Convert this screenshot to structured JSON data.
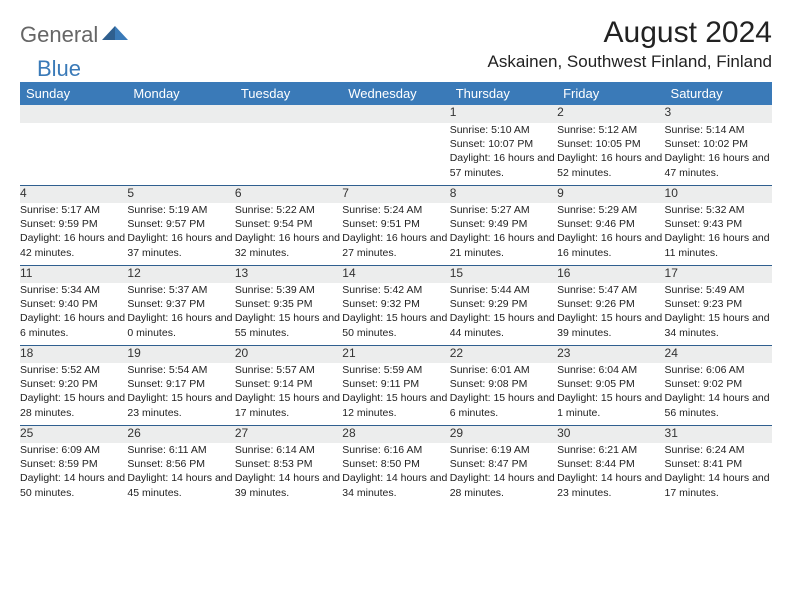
{
  "logo": {
    "part1": "General",
    "part2": "Blue"
  },
  "title": "August 2024",
  "subtitle": "Askainen, Southwest Finland, Finland",
  "colors": {
    "header_bg": "#3a7ab8",
    "header_text": "#ffffff",
    "daynum_bg": "#eceded",
    "row_border": "#2f5f8f",
    "body_text": "#222222",
    "logo_gray": "#666666",
    "logo_blue": "#3a7ab8",
    "page_bg": "#ffffff"
  },
  "weekdays": [
    "Sunday",
    "Monday",
    "Tuesday",
    "Wednesday",
    "Thursday",
    "Friday",
    "Saturday"
  ],
  "weeks": [
    [
      {
        "n": "",
        "sr": "",
        "ss": "",
        "dl": ""
      },
      {
        "n": "",
        "sr": "",
        "ss": "",
        "dl": ""
      },
      {
        "n": "",
        "sr": "",
        "ss": "",
        "dl": ""
      },
      {
        "n": "",
        "sr": "",
        "ss": "",
        "dl": ""
      },
      {
        "n": "1",
        "sr": "Sunrise: 5:10 AM",
        "ss": "Sunset: 10:07 PM",
        "dl": "Daylight: 16 hours and 57 minutes."
      },
      {
        "n": "2",
        "sr": "Sunrise: 5:12 AM",
        "ss": "Sunset: 10:05 PM",
        "dl": "Daylight: 16 hours and 52 minutes."
      },
      {
        "n": "3",
        "sr": "Sunrise: 5:14 AM",
        "ss": "Sunset: 10:02 PM",
        "dl": "Daylight: 16 hours and 47 minutes."
      }
    ],
    [
      {
        "n": "4",
        "sr": "Sunrise: 5:17 AM",
        "ss": "Sunset: 9:59 PM",
        "dl": "Daylight: 16 hours and 42 minutes."
      },
      {
        "n": "5",
        "sr": "Sunrise: 5:19 AM",
        "ss": "Sunset: 9:57 PM",
        "dl": "Daylight: 16 hours and 37 minutes."
      },
      {
        "n": "6",
        "sr": "Sunrise: 5:22 AM",
        "ss": "Sunset: 9:54 PM",
        "dl": "Daylight: 16 hours and 32 minutes."
      },
      {
        "n": "7",
        "sr": "Sunrise: 5:24 AM",
        "ss": "Sunset: 9:51 PM",
        "dl": "Daylight: 16 hours and 27 minutes."
      },
      {
        "n": "8",
        "sr": "Sunrise: 5:27 AM",
        "ss": "Sunset: 9:49 PM",
        "dl": "Daylight: 16 hours and 21 minutes."
      },
      {
        "n": "9",
        "sr": "Sunrise: 5:29 AM",
        "ss": "Sunset: 9:46 PM",
        "dl": "Daylight: 16 hours and 16 minutes."
      },
      {
        "n": "10",
        "sr": "Sunrise: 5:32 AM",
        "ss": "Sunset: 9:43 PM",
        "dl": "Daylight: 16 hours and 11 minutes."
      }
    ],
    [
      {
        "n": "11",
        "sr": "Sunrise: 5:34 AM",
        "ss": "Sunset: 9:40 PM",
        "dl": "Daylight: 16 hours and 6 minutes."
      },
      {
        "n": "12",
        "sr": "Sunrise: 5:37 AM",
        "ss": "Sunset: 9:37 PM",
        "dl": "Daylight: 16 hours and 0 minutes."
      },
      {
        "n": "13",
        "sr": "Sunrise: 5:39 AM",
        "ss": "Sunset: 9:35 PM",
        "dl": "Daylight: 15 hours and 55 minutes."
      },
      {
        "n": "14",
        "sr": "Sunrise: 5:42 AM",
        "ss": "Sunset: 9:32 PM",
        "dl": "Daylight: 15 hours and 50 minutes."
      },
      {
        "n": "15",
        "sr": "Sunrise: 5:44 AM",
        "ss": "Sunset: 9:29 PM",
        "dl": "Daylight: 15 hours and 44 minutes."
      },
      {
        "n": "16",
        "sr": "Sunrise: 5:47 AM",
        "ss": "Sunset: 9:26 PM",
        "dl": "Daylight: 15 hours and 39 minutes."
      },
      {
        "n": "17",
        "sr": "Sunrise: 5:49 AM",
        "ss": "Sunset: 9:23 PM",
        "dl": "Daylight: 15 hours and 34 minutes."
      }
    ],
    [
      {
        "n": "18",
        "sr": "Sunrise: 5:52 AM",
        "ss": "Sunset: 9:20 PM",
        "dl": "Daylight: 15 hours and 28 minutes."
      },
      {
        "n": "19",
        "sr": "Sunrise: 5:54 AM",
        "ss": "Sunset: 9:17 PM",
        "dl": "Daylight: 15 hours and 23 minutes."
      },
      {
        "n": "20",
        "sr": "Sunrise: 5:57 AM",
        "ss": "Sunset: 9:14 PM",
        "dl": "Daylight: 15 hours and 17 minutes."
      },
      {
        "n": "21",
        "sr": "Sunrise: 5:59 AM",
        "ss": "Sunset: 9:11 PM",
        "dl": "Daylight: 15 hours and 12 minutes."
      },
      {
        "n": "22",
        "sr": "Sunrise: 6:01 AM",
        "ss": "Sunset: 9:08 PM",
        "dl": "Daylight: 15 hours and 6 minutes."
      },
      {
        "n": "23",
        "sr": "Sunrise: 6:04 AM",
        "ss": "Sunset: 9:05 PM",
        "dl": "Daylight: 15 hours and 1 minute."
      },
      {
        "n": "24",
        "sr": "Sunrise: 6:06 AM",
        "ss": "Sunset: 9:02 PM",
        "dl": "Daylight: 14 hours and 56 minutes."
      }
    ],
    [
      {
        "n": "25",
        "sr": "Sunrise: 6:09 AM",
        "ss": "Sunset: 8:59 PM",
        "dl": "Daylight: 14 hours and 50 minutes."
      },
      {
        "n": "26",
        "sr": "Sunrise: 6:11 AM",
        "ss": "Sunset: 8:56 PM",
        "dl": "Daylight: 14 hours and 45 minutes."
      },
      {
        "n": "27",
        "sr": "Sunrise: 6:14 AM",
        "ss": "Sunset: 8:53 PM",
        "dl": "Daylight: 14 hours and 39 minutes."
      },
      {
        "n": "28",
        "sr": "Sunrise: 6:16 AM",
        "ss": "Sunset: 8:50 PM",
        "dl": "Daylight: 14 hours and 34 minutes."
      },
      {
        "n": "29",
        "sr": "Sunrise: 6:19 AM",
        "ss": "Sunset: 8:47 PM",
        "dl": "Daylight: 14 hours and 28 minutes."
      },
      {
        "n": "30",
        "sr": "Sunrise: 6:21 AM",
        "ss": "Sunset: 8:44 PM",
        "dl": "Daylight: 14 hours and 23 minutes."
      },
      {
        "n": "31",
        "sr": "Sunrise: 6:24 AM",
        "ss": "Sunset: 8:41 PM",
        "dl": "Daylight: 14 hours and 17 minutes."
      }
    ]
  ]
}
